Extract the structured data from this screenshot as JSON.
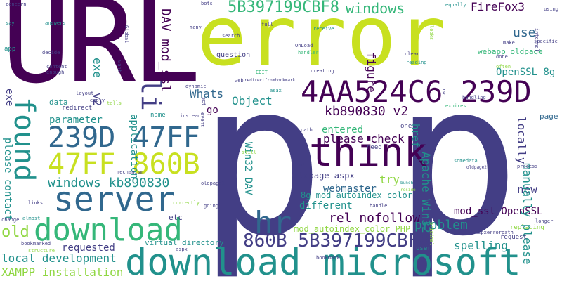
{
  "palette": {
    "dark_purple": "#440154",
    "indigo": "#433e85",
    "blue": "#31688e",
    "teal": "#21918c",
    "green": "#35b779",
    "lime": "#90d743",
    "yellow": "#c8e020"
  },
  "words": [
    {
      "text": "p",
      "color": "indigo"
    },
    {
      "text": "p",
      "color": "indigo"
    },
    {
      "text": "URL",
      "color": "dark_purple"
    },
    {
      "text": "error",
      "color": "yellow"
    },
    {
      "text": "4AA524C6 239D",
      "color": "dark_purple"
    },
    {
      "text": "download microsoft",
      "color": "teal"
    },
    {
      "text": "download",
      "color": "green"
    },
    {
      "text": "think",
      "color": "dark_purple"
    },
    {
      "text": "server",
      "color": "blue"
    },
    {
      "text": "239D 47FF",
      "color": "blue"
    },
    {
      "text": "47FF 860B",
      "color": "yellow"
    },
    {
      "text": "found",
      "color": "teal"
    },
    {
      "text": "hr",
      "color": "blue"
    },
    {
      "text": "860B 5B397199CBF8",
      "color": "indigo"
    },
    {
      "text": "5B397199CBF8",
      "color": "green"
    },
    {
      "text": "windows",
      "color": "green"
    },
    {
      "text": "FireFox3",
      "color": "dark_purple"
    },
    {
      "text": "DAV mod_ssl",
      "color": "dark_purple"
    },
    {
      "text": "use",
      "color": "blue"
    },
    {
      "text": "OpenSSL 8g",
      "color": "teal"
    },
    {
      "text": "webapp oldpage",
      "color": "green"
    },
    {
      "text": "figure",
      "color": "dark_purple"
    },
    {
      "text": "kb890830 v2",
      "color": "dark_purple"
    },
    {
      "text": "please check",
      "color": "dark_purple"
    },
    {
      "text": "href",
      "color": "teal"
    },
    {
      "text": "Whats",
      "color": "blue"
    },
    {
      "text": "Object",
      "color": "teal"
    },
    {
      "text": "li",
      "color": "indigo"
    },
    {
      "text": "v2",
      "color": "indigo"
    },
    {
      "text": "exe",
      "color": "teal"
    },
    {
      "text": "exe",
      "color": "indigo"
    },
    {
      "text": "go",
      "color": "dark_purple"
    },
    {
      "text": "parameter",
      "color": "teal"
    },
    {
      "text": "application",
      "color": "teal"
    },
    {
      "text": "windows kb890830",
      "color": "teal"
    },
    {
      "text": "entered",
      "color": "green"
    },
    {
      "text": "Win32 DAV",
      "color": "teal"
    },
    {
      "text": "Apache Win32",
      "color": "teal"
    },
    {
      "text": "locally",
      "color": "indigo"
    },
    {
      "text": "please contact",
      "color": "teal"
    },
    {
      "text": "try",
      "color": "lime"
    },
    {
      "text": "webmaster",
      "color": "blue"
    },
    {
      "text": "oldpage aspx",
      "color": "indigo"
    },
    {
      "text": "8g mod_autoindex_color",
      "color": "teal"
    },
    {
      "text": "different",
      "color": "teal"
    },
    {
      "text": "rel nofollow",
      "color": "dark_purple"
    },
    {
      "text": "mod_autoindex_color PHP",
      "color": "lime"
    },
    {
      "text": "new",
      "color": "indigo"
    },
    {
      "text": "mod_ssl OpenSSL",
      "color": "dark_purple"
    },
    {
      "text": "problem",
      "color": "teal"
    },
    {
      "text": "manually please",
      "color": "teal"
    },
    {
      "text": "old",
      "color": "lime"
    },
    {
      "text": "requested",
      "color": "indigo"
    },
    {
      "text": "local development",
      "color": "teal"
    },
    {
      "text": "XAMPP installation",
      "color": "lime"
    },
    {
      "text": "spelling",
      "color": "teal"
    },
    {
      "text": "virtual directory",
      "color": "teal"
    },
    {
      "text": "etc",
      "color": "indigo"
    },
    {
      "text": "data",
      "color": "teal"
    },
    {
      "text": "redirect",
      "color": "indigo"
    },
    {
      "text": "layout",
      "color": "indigo"
    },
    {
      "text": "empty",
      "color": "indigo"
    },
    {
      "text": "concern",
      "color": "indigo"
    },
    {
      "text": "say",
      "color": "teal"
    },
    {
      "text": "answers",
      "color": "teal"
    },
    {
      "text": "app",
      "color": "teal"
    },
    {
      "text": "decide",
      "color": "indigo"
    },
    {
      "text": "content",
      "color": "indigo"
    },
    {
      "text": "enough",
      "color": "indigo"
    },
    {
      "text": "Global",
      "color": "indigo"
    },
    {
      "text": "want",
      "color": "indigo"
    },
    {
      "text": "many",
      "color": "indigo"
    },
    {
      "text": "bots",
      "color": "indigo"
    },
    {
      "text": "full",
      "color": "indigo"
    },
    {
      "text": "search",
      "color": "indigo"
    },
    {
      "text": "receive",
      "color": "teal"
    },
    {
      "text": "question",
      "color": "indigo"
    },
    {
      "text": "OnLoad",
      "color": "indigo"
    },
    {
      "text": "handler",
      "color": "green"
    },
    {
      "text": "EDIT",
      "color": "green"
    },
    {
      "text": "creating",
      "color": "indigo"
    },
    {
      "text": "web",
      "color": "indigo"
    },
    {
      "text": "redirectfrombookmark",
      "color": "indigo"
    },
    {
      "text": "asax",
      "color": "teal"
    },
    {
      "text": "clear",
      "color": "indigo"
    },
    {
      "text": "reading",
      "color": "teal"
    },
    {
      "text": "often",
      "color": "lime"
    },
    {
      "text": "equally",
      "color": "teal"
    },
    {
      "text": "using",
      "color": "indigo"
    },
    {
      "text": "internal",
      "color": "indigo"
    },
    {
      "text": "specific",
      "color": "indigo"
    },
    {
      "text": "make",
      "color": "indigo"
    },
    {
      "text": "done",
      "color": "indigo"
    },
    {
      "text": "handling",
      "color": "indigo"
    },
    {
      "text": "expires",
      "color": "green"
    },
    {
      "text": "page",
      "color": "blue"
    },
    {
      "text": "one",
      "color": "indigo"
    },
    {
      "text": "path",
      "color": "indigo"
    },
    {
      "text": "need",
      "color": "indigo"
    },
    {
      "text": "still",
      "color": "lime"
    },
    {
      "text": "name",
      "color": "teal"
    },
    {
      "text": "instead",
      "color": "indigo"
    },
    {
      "text": "mechanism",
      "color": "indigo"
    },
    {
      "text": "links",
      "color": "indigo"
    },
    {
      "text": "almost",
      "color": "teal"
    },
    {
      "text": "change",
      "color": "indigo"
    },
    {
      "text": "bookmarked",
      "color": "indigo"
    },
    {
      "text": "structure",
      "color": "lime"
    },
    {
      "text": "aspx",
      "color": "indigo"
    },
    {
      "text": "user",
      "color": "teal"
    },
    {
      "text": "bookmark",
      "color": "indigo"
    },
    {
      "text": "request",
      "color": "indigo"
    },
    {
      "text": "replacing",
      "color": "lime"
    },
    {
      "text": "longer",
      "color": "indigo"
    },
    {
      "text": "aspxerrorpath",
      "color": "indigo"
    },
    {
      "text": "somedata",
      "color": "teal"
    },
    {
      "text": "process",
      "color": "indigo"
    },
    {
      "text": "oldpage2",
      "color": "indigo"
    },
    {
      "text": "oldpage1",
      "color": "indigo"
    },
    {
      "text": "bunch",
      "color": "teal"
    },
    {
      "text": "reside",
      "color": "lime"
    },
    {
      "text": "handle",
      "color": "indigo"
    },
    {
      "text": "going",
      "color": "indigo"
    },
    {
      "text": "correctly",
      "color": "lime"
    },
    {
      "text": "original",
      "color": "lime"
    },
    {
      "text": "dynamic",
      "color": "indigo"
    },
    {
      "text": "set",
      "color": "indigo"
    },
    {
      "text": "event",
      "color": "indigo"
    },
    {
      "text": "tells",
      "color": "lime"
    },
    {
      "text": "looks",
      "color": "lime"
    },
    {
      "text": "rw",
      "color": "indigo"
    },
    {
      "text": "ol",
      "color": "indigo"
    }
  ]
}
